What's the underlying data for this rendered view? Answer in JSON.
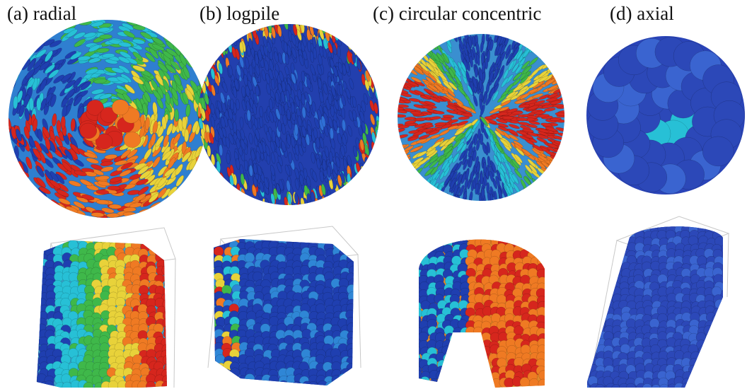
{
  "figure": {
    "panels": [
      {
        "id": "a",
        "label": "(a) radial",
        "palette": "rainbow"
      },
      {
        "id": "b",
        "label": "(b) logpile",
        "palette": "mostly-blue"
      },
      {
        "id": "c",
        "label": "(c) circular concentric",
        "palette": "rainbow"
      },
      {
        "id": "d",
        "label": "(d) axial",
        "palette": "blue"
      }
    ]
  },
  "colors": {
    "blue": "#1f3fb0",
    "cyan": "#27c0d6",
    "green": "#3fb84a",
    "yellow": "#e8d23a",
    "orange": "#ef7a23",
    "red": "#d6261d",
    "box_edge": "#c8c8c8"
  }
}
